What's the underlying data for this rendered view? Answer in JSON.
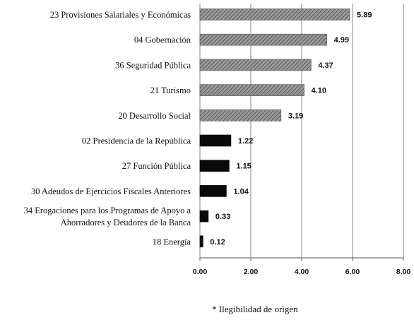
{
  "chart_data": {
    "type": "bar",
    "orientation": "horizontal",
    "categories": [
      [
        "23 Provisiones Salariales y Económicas"
      ],
      [
        "04 Gobernación"
      ],
      [
        "36 Seguridad Pública"
      ],
      [
        "21 Turismo"
      ],
      [
        "20 Desarrollo Social"
      ],
      [
        "02 Presidencia de la República"
      ],
      [
        "27 Función Pública"
      ],
      [
        "30 Adeudos de Ejercicios Fiscales Anteriores"
      ],
      [
        "34 Erogaciones para los Programas de Apoyo a",
        "Ahorradores y Deudores de la Banca"
      ],
      [
        "18 Energía"
      ]
    ],
    "values": [
      5.89,
      4.99,
      4.37,
      4.1,
      3.19,
      1.22,
      1.15,
      1.04,
      0.33,
      0.12
    ],
    "value_labels": [
      "5.89",
      "4.99",
      "4.37",
      "4.10",
      "3.19",
      "1.22",
      "1.15",
      "1.04",
      "0.33",
      "0.12"
    ],
    "bar_styles": [
      "hatched",
      "hatched",
      "hatched",
      "hatched",
      "hatched",
      "solid",
      "solid",
      "solid",
      "solid",
      "solid"
    ],
    "xlim": [
      0,
      8
    ],
    "xticks": [
      0,
      2,
      4,
      6,
      8
    ],
    "xtick_labels": [
      "0.00",
      "2.00",
      "4.00",
      "6.00",
      "8.00"
    ],
    "grid": "vertical",
    "title": "",
    "xlabel": "",
    "ylabel": "",
    "colors": {
      "hatched_fill": "#8c8c8c",
      "hatched_stroke": "#555555",
      "solid_fill": "#0a0a0a",
      "grid": "#9a9a9a",
      "axis": "#555555"
    }
  },
  "footnote": "* Ilegibilidad de origen"
}
